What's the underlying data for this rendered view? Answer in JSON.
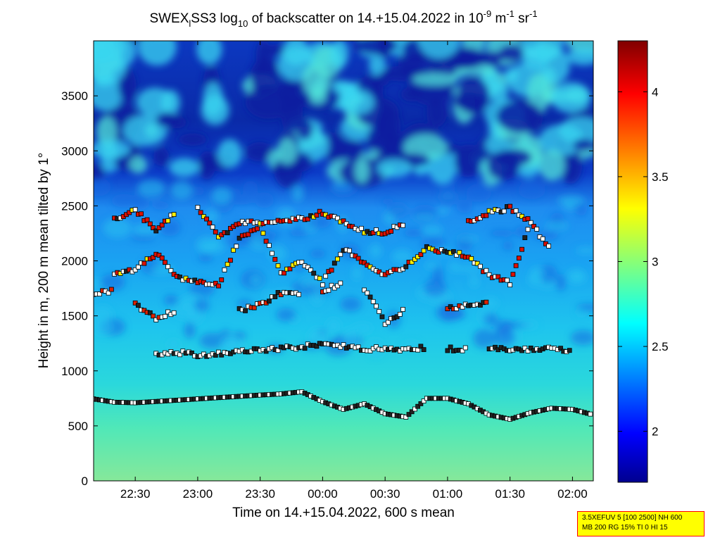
{
  "chart_data": {
    "type": "heatmap",
    "title_parts": [
      "SWEX",
      "l",
      "SS3 log",
      "10",
      " of backscatter on 14.+15.04.2022 in 10",
      "-9",
      " m",
      "-1",
      " sr",
      "-1"
    ],
    "xlabel": "Time on 14.+15.04.2022, 600 s mean",
    "ylabel": "Height in m, 200 m mean tilted by 1°",
    "xlim": [
      "22:10",
      "02:10"
    ],
    "x_ticks": [
      "22:30",
      "23:00",
      "23:30",
      "00:00",
      "00:30",
      "01:00",
      "01:30",
      "02:00"
    ],
    "ylim": [
      0,
      4000
    ],
    "y_ticks": [
      0,
      500,
      1000,
      1500,
      2000,
      2500,
      3000,
      3500
    ],
    "colorbar": {
      "range": [
        1.7,
        4.3
      ],
      "ticks": [
        2,
        2.5,
        3,
        3.5,
        4
      ],
      "colormap": "jet"
    },
    "layers": [
      {
        "name": "cloud-base",
        "points": [
          [
            "22:10",
            745
          ],
          [
            "22:20",
            715
          ],
          [
            "22:30",
            710
          ],
          [
            "23:30",
            780
          ],
          [
            "23:40",
            790
          ],
          [
            "23:50",
            810
          ],
          [
            "24:00",
            720
          ],
          [
            "24:10",
            650
          ],
          [
            "24:20",
            700
          ],
          [
            "24:30",
            610
          ],
          [
            "24:40",
            580
          ],
          [
            "24:50",
            750
          ],
          [
            "25:00",
            750
          ],
          [
            "25:10",
            700
          ],
          [
            "25:20",
            600
          ],
          [
            "25:30",
            560
          ],
          [
            "25:40",
            620
          ],
          [
            "25:50",
            660
          ],
          [
            "26:00",
            650
          ],
          [
            "26:10",
            600
          ]
        ]
      },
      {
        "name": "layer-1200",
        "points": [
          [
            "22:30",
            1150
          ],
          [
            "22:40",
            1140
          ],
          [
            "22:50",
            1170
          ],
          [
            "23:00",
            1140
          ],
          [
            "23:30",
            1190
          ],
          [
            "23:40",
            1200
          ],
          [
            "24:00",
            1240
          ],
          [
            "24:10",
            1220
          ],
          [
            "24:20",
            1200
          ],
          [
            "24:40",
            1200
          ],
          [
            "24:50",
            1210
          ],
          [
            "25:00",
            1200
          ],
          [
            "25:10",
            1190
          ],
          [
            "25:20",
            1200
          ],
          [
            "25:30",
            1200
          ],
          [
            "25:40",
            1190
          ],
          [
            "25:50",
            1210
          ],
          [
            "26:00",
            1180
          ]
        ]
      },
      {
        "name": "layer-1700",
        "points": [
          [
            "22:10",
            1700
          ],
          [
            "22:20",
            1730
          ],
          [
            "22:30",
            1600
          ],
          [
            "22:40",
            1480
          ],
          [
            "22:50",
            1550
          ],
          [
            "23:00",
            1700
          ],
          [
            "23:10",
            1680
          ],
          [
            "23:20",
            1550
          ],
          [
            "23:30",
            1600
          ],
          [
            "23:40",
            1710
          ],
          [
            "23:50",
            1710
          ],
          [
            "24:00",
            1730
          ],
          [
            "24:10",
            1800
          ],
          [
            "24:20",
            1750
          ],
          [
            "24:30",
            1440
          ],
          [
            "24:40",
            1560
          ],
          [
            "24:50",
            1700
          ],
          [
            "25:00",
            1560
          ],
          [
            "25:10",
            1600
          ],
          [
            "25:20",
            1620
          ],
          [
            "25:30",
            1640
          ]
        ]
      },
      {
        "name": "layer-2000",
        "points": [
          [
            "22:20",
            1880
          ],
          [
            "22:30",
            1920
          ],
          [
            "22:40",
            2070
          ],
          [
            "22:50",
            1860
          ],
          [
            "23:00",
            1800
          ],
          [
            "23:10",
            1780
          ],
          [
            "23:20",
            2200
          ],
          [
            "23:30",
            2320
          ],
          [
            "23:40",
            1880
          ],
          [
            "23:50",
            2000
          ],
          [
            "24:00",
            1800
          ],
          [
            "24:10",
            2110
          ],
          [
            "24:20",
            1990
          ],
          [
            "24:30",
            1880
          ],
          [
            "24:40",
            1950
          ],
          [
            "24:50",
            2110
          ],
          [
            "25:00",
            2080
          ],
          [
            "25:10",
            2040
          ],
          [
            "25:20",
            1870
          ],
          [
            "25:30",
            1800
          ],
          [
            "25:40",
            2350
          ],
          [
            "25:50",
            2080
          ]
        ]
      },
      {
        "name": "layer-2400",
        "points": [
          [
            "22:20",
            2370
          ],
          [
            "22:30",
            2470
          ],
          [
            "22:40",
            2270
          ],
          [
            "22:50",
            2450
          ],
          [
            "23:00",
            2470
          ],
          [
            "23:10",
            2220
          ],
          [
            "23:20",
            2340
          ],
          [
            "23:50",
            2380
          ],
          [
            "24:00",
            2440
          ],
          [
            "24:20",
            2270
          ],
          [
            "24:30",
            2260
          ],
          [
            "24:40",
            2350
          ],
          [
            "24:50",
            2460
          ],
          [
            "25:00",
            2450
          ],
          [
            "25:10",
            2350
          ],
          [
            "25:20",
            2440
          ],
          [
            "25:30",
            2480
          ],
          [
            "25:40",
            2350
          ],
          [
            "25:50",
            2200
          ]
        ]
      }
    ]
  },
  "info_box": {
    "line1": "3.5XEFUV 5 [100 2500] NH 600",
    "line2": "MB 200 RG 15% TI 0 HI 15"
  },
  "colors": {
    "bg": "#ffffff",
    "info_bg": "#ffff00",
    "info_border": "#ff0000"
  }
}
